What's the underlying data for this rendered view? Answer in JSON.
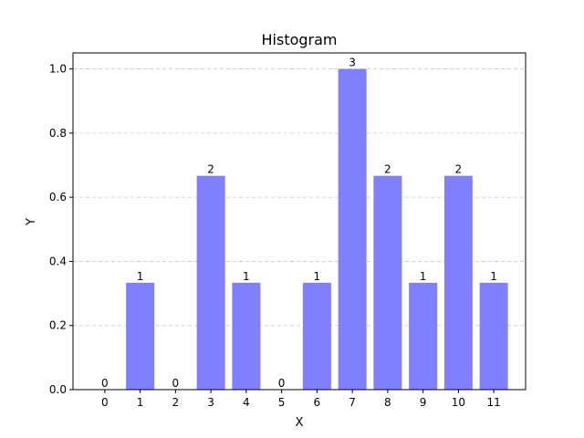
{
  "chart_data": {
    "type": "bar",
    "title": "Histogram",
    "xlabel": "X",
    "ylabel": "Y",
    "categories": [
      "0",
      "1",
      "2",
      "3",
      "4",
      "5",
      "6",
      "7",
      "8",
      "9",
      "10",
      "11"
    ],
    "values": [
      0,
      0.3333,
      0,
      0.6667,
      0.3333,
      0,
      0.3333,
      1.0,
      0.6667,
      0.3333,
      0.6667,
      0.3333
    ],
    "data_labels": [
      "0",
      "1",
      "0",
      "2",
      "1",
      "0",
      "1",
      "3",
      "2",
      "1",
      "2",
      "1"
    ],
    "ylim": [
      0,
      1.05
    ],
    "yticks": [
      0.0,
      0.2,
      0.4,
      0.6,
      0.8,
      1.0
    ],
    "ytick_labels": [
      "0.0",
      "0.2",
      "0.4",
      "0.6",
      "0.8",
      "1.0"
    ],
    "grid": {
      "y": true,
      "x": false,
      "style": "dashed"
    },
    "colors": {
      "bar": "#8080ff",
      "grid": "#c8c8c8",
      "axis": "#000000"
    }
  }
}
